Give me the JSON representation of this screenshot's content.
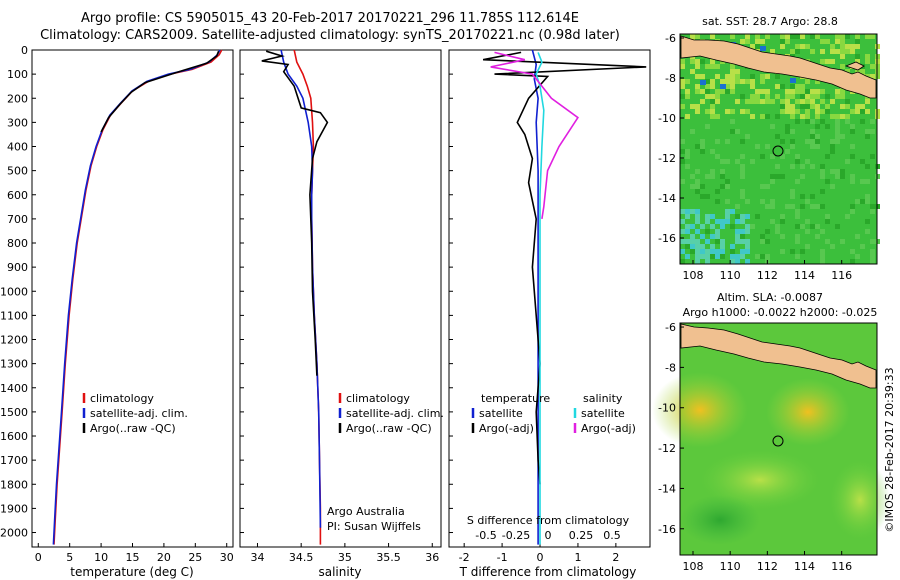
{
  "header": {
    "line1": "Argo profile: CS 5905015_43 20-Feb-2017 20170221_296 11.785S 112.614E",
    "line2": "Climatology: CARS2009. Satellite-adjusted climatology: synTS_20170221.nc (0.98d later)"
  },
  "colors": {
    "climatology": "#e01010",
    "satellite": "#1020d0",
    "argo": "#000000",
    "sat_salinity": "#20d8e0",
    "argo_salinity_diff": "#e020e0",
    "land": "#f0c090",
    "ocean_base": "#33bb33"
  },
  "depth_axis": {
    "ticks": [
      0,
      100,
      200,
      300,
      400,
      500,
      600,
      700,
      800,
      900,
      1000,
      1100,
      1200,
      1300,
      1400,
      1500,
      1600,
      1700,
      1800,
      1900,
      2000
    ],
    "max": 2060
  },
  "chart_data": [
    {
      "type": "line",
      "panel": "temperature",
      "xlabel": "temperature (deg C)",
      "ylabel": "",
      "xlim": [
        -1,
        31
      ],
      "ylim": [
        2060,
        0
      ],
      "xticks": [
        0,
        5,
        10,
        15,
        20,
        25,
        30
      ],
      "legend": [
        "climatology",
        "satellite-adj. clim.",
        "Argo(..raw -QC)"
      ],
      "series": [
        {
          "name": "climatology",
          "x": [
            29.2,
            28.8,
            27.5,
            24.5,
            21.0,
            17.5,
            15.0,
            13.2,
            11.5,
            10.3,
            9.3,
            8.4,
            7.6,
            6.9,
            6.2,
            5.5,
            4.9,
            4.3,
            3.8,
            3.4,
            3.0,
            2.7,
            2.5
          ],
          "y": [
            0,
            20,
            50,
            80,
            100,
            130,
            170,
            220,
            270,
            330,
            400,
            480,
            580,
            690,
            800,
            950,
            1100,
            1300,
            1500,
            1650,
            1800,
            1950,
            2050
          ]
        },
        {
          "name": "satellite-adj. clim.",
          "x": [
            28.9,
            28.5,
            27.2,
            24.2,
            20.7,
            17.3,
            14.9,
            13.1,
            11.4,
            10.2,
            9.2,
            8.3,
            7.5,
            6.8,
            6.1,
            5.4,
            4.8,
            4.2,
            3.7,
            3.3,
            2.9,
            2.6,
            2.4
          ],
          "y": [
            0,
            20,
            50,
            80,
            100,
            130,
            170,
            220,
            270,
            330,
            400,
            480,
            580,
            690,
            800,
            950,
            1100,
            1300,
            1500,
            1650,
            1800,
            1950,
            2050
          ]
        },
        {
          "name": "Argo(..raw -QC)",
          "x": [
            28.7,
            28.4,
            26.8,
            23.0,
            21.2,
            17.0,
            14.8,
            13.0,
            11.2,
            10.0
          ],
          "y": [
            5,
            25,
            55,
            85,
            100,
            135,
            175,
            225,
            280,
            340
          ]
        }
      ]
    },
    {
      "type": "line",
      "panel": "salinity",
      "xlabel": "salinity",
      "ylabel": "",
      "xlim": [
        33.8,
        36.1
      ],
      "ylim": [
        2060,
        0
      ],
      "xticks": [
        34,
        34.5,
        35,
        35.5,
        36
      ],
      "legend": [
        "climatology",
        "satellite-adj. clim.",
        "Argo(..raw -QC)"
      ],
      "annotation": [
        "Argo Australia",
        "PI: Susan Wijffels"
      ],
      "series": [
        {
          "name": "climatology",
          "x": [
            34.42,
            34.45,
            34.52,
            34.57,
            34.61,
            34.63,
            34.64,
            34.63,
            34.62,
            34.62,
            34.63,
            34.65,
            34.68,
            34.7,
            34.71,
            34.72,
            34.72
          ],
          "y": [
            0,
            50,
            100,
            150,
            200,
            300,
            400,
            500,
            600,
            700,
            900,
            1100,
            1300,
            1500,
            1700,
            1900,
            2050
          ]
        },
        {
          "name": "satellite-adj. clim.",
          "x": [
            34.27,
            34.3,
            34.35,
            34.45,
            34.52,
            34.58,
            34.62,
            34.63,
            34.62,
            34.62,
            34.63,
            34.65,
            34.68,
            34.7,
            34.71,
            34.72
          ],
          "y": [
            0,
            50,
            100,
            150,
            200,
            300,
            400,
            500,
            600,
            700,
            900,
            1100,
            1300,
            1500,
            1700,
            1980
          ]
        },
        {
          "name": "Argo(..raw -QC)",
          "x": [
            34.1,
            34.28,
            34.05,
            34.35,
            34.3,
            34.42,
            34.5,
            34.72,
            34.8,
            34.68,
            34.63,
            34.6,
            34.62,
            34.63,
            34.66,
            34.68
          ],
          "y": [
            5,
            25,
            45,
            60,
            90,
            150,
            240,
            260,
            300,
            380,
            450,
            600,
            800,
            1000,
            1200,
            1350
          ]
        }
      ]
    },
    {
      "type": "line",
      "panel": "difference",
      "xlabel": "T difference from climatology",
      "top_xlabel": "S difference from climatology",
      "xlim": [
        -2.4,
        2.9
      ],
      "ylim": [
        2060,
        0
      ],
      "xticks": [
        -2,
        -1,
        0,
        1,
        2
      ],
      "top_xticks": [
        "-0.5",
        "-0.25",
        "0",
        "0.25",
        "0.5"
      ],
      "legend_title_left": "temperature",
      "legend_title_right": "salinity",
      "legend_left": [
        "satellite",
        "Argo(-adj)"
      ],
      "legend_right": [
        "satellite",
        "Argo(-adj)"
      ],
      "series": [
        {
          "name": "temperature satellite",
          "x": [
            -0.2,
            -0.1,
            -0.15,
            -0.05,
            -0.1,
            -0.05,
            -0.05,
            -0.05,
            -0.05,
            -0.05,
            -0.05
          ],
          "y": [
            0,
            60,
            120,
            200,
            300,
            500,
            800,
            1100,
            1400,
            1700,
            2050
          ]
        },
        {
          "name": "temperature Argo(-adj)",
          "x": [
            -0.5,
            -1.5,
            2.8,
            -1.2,
            0.2,
            -0.3,
            -0.6,
            -0.4,
            -0.2,
            -0.3,
            -0.1,
            -0.2,
            -0.1,
            0.0,
            -0.1,
            -0.05,
            0.0
          ],
          "y": [
            10,
            40,
            70,
            100,
            110,
            200,
            300,
            350,
            450,
            550,
            700,
            900,
            1100,
            1300,
            1500,
            1700,
            1800
          ]
        },
        {
          "name": "salinity satellite",
          "x": [
            -0.05,
            0.05,
            -0.1,
            0.0,
            0.1,
            0.05,
            0.0,
            0.0,
            0.0,
            0.0,
            0.0
          ],
          "y": [
            10,
            50,
            100,
            150,
            250,
            400,
            600,
            900,
            1200,
            1600,
            2050
          ]
        },
        {
          "name": "salinity Argo(-adj)",
          "x": [
            -1.2,
            -0.4,
            -1.3,
            -0.2,
            0.3,
            1.0,
            0.5,
            0.2,
            0.1,
            0.05
          ],
          "y": [
            10,
            40,
            70,
            100,
            200,
            280,
            400,
            500,
            650,
            700
          ]
        }
      ]
    }
  ],
  "maps": {
    "sst": {
      "title": "sat. SST: 28.7  Argo: 28.8",
      "xticks": [
        "108",
        "110",
        "112",
        "114",
        "116"
      ],
      "yticks": [
        "-6",
        "-8",
        "-10",
        "-12",
        "-14",
        "-16"
      ]
    },
    "sla": {
      "title_line1": "Altim. SLA: -0.0087",
      "title_line2": "Argo h1000: -0.0022 h2000: -0.025",
      "xticks": [
        "108",
        "110",
        "112",
        "114",
        "116"
      ],
      "yticks": [
        "-6",
        "-8",
        "-10",
        "-12",
        "-14",
        "-16"
      ]
    }
  },
  "credit": "©IMOS 28-Feb-2017 20:39:33"
}
